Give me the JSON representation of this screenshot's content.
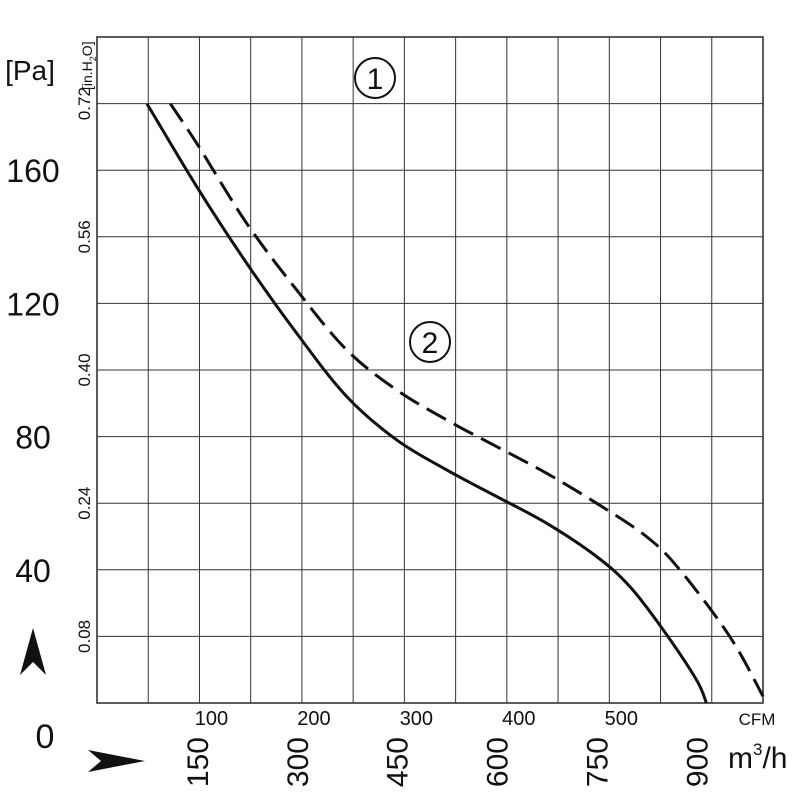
{
  "chart_data": {
    "type": "line",
    "y_unit_left": "[Pa]",
    "y_unit_inner": "[in.H",
    "y_unit_inner_sub": "2",
    "y_unit_inner_end": "O]",
    "x_unit_top": "CFM",
    "x_unit_bottom": "m",
    "x_unit_bottom_sup": "3",
    "x_unit_bottom_end": "/h",
    "xlim_m3h": [
      0,
      1000
    ],
    "ylim_pa": [
      0,
      200
    ],
    "grid": true,
    "pa_ticks": [
      "40",
      "80",
      "120",
      "160"
    ],
    "zero_label": "0",
    "inh2o_ticks": [
      "0.08",
      "0.24",
      "0.40",
      "0.56",
      "0.72"
    ],
    "cfm_ticks": [
      "100",
      "200",
      "300",
      "400",
      "500"
    ],
    "m3h_ticks": [
      "150",
      "300",
      "450",
      "600",
      "750",
      "900"
    ],
    "series": [
      {
        "name": "1",
        "style": "solid",
        "points_m3h_pa": [
          [
            75,
            180
          ],
          [
            150,
            155
          ],
          [
            225,
            132
          ],
          [
            300,
            111
          ],
          [
            375,
            92
          ],
          [
            450,
            79
          ],
          [
            525,
            70
          ],
          [
            600,
            62
          ],
          [
            675,
            54
          ],
          [
            750,
            44
          ],
          [
            800,
            35
          ],
          [
            850,
            22
          ],
          [
            900,
            7
          ],
          [
            915,
            0
          ]
        ]
      },
      {
        "name": "2",
        "style": "dashed",
        "points_m3h_pa": [
          [
            110,
            180
          ],
          [
            150,
            168
          ],
          [
            225,
            144
          ],
          [
            300,
            124
          ],
          [
            375,
            106
          ],
          [
            450,
            94
          ],
          [
            525,
            85
          ],
          [
            600,
            77
          ],
          [
            675,
            69
          ],
          [
            750,
            60
          ],
          [
            825,
            50
          ],
          [
            875,
            40
          ],
          [
            950,
            20
          ],
          [
            1000,
            2
          ]
        ]
      }
    ],
    "series_labels": [
      "1",
      "2"
    ]
  },
  "colors": {
    "line": "#111111",
    "grid": "#333333",
    "background": "#ffffff"
  }
}
